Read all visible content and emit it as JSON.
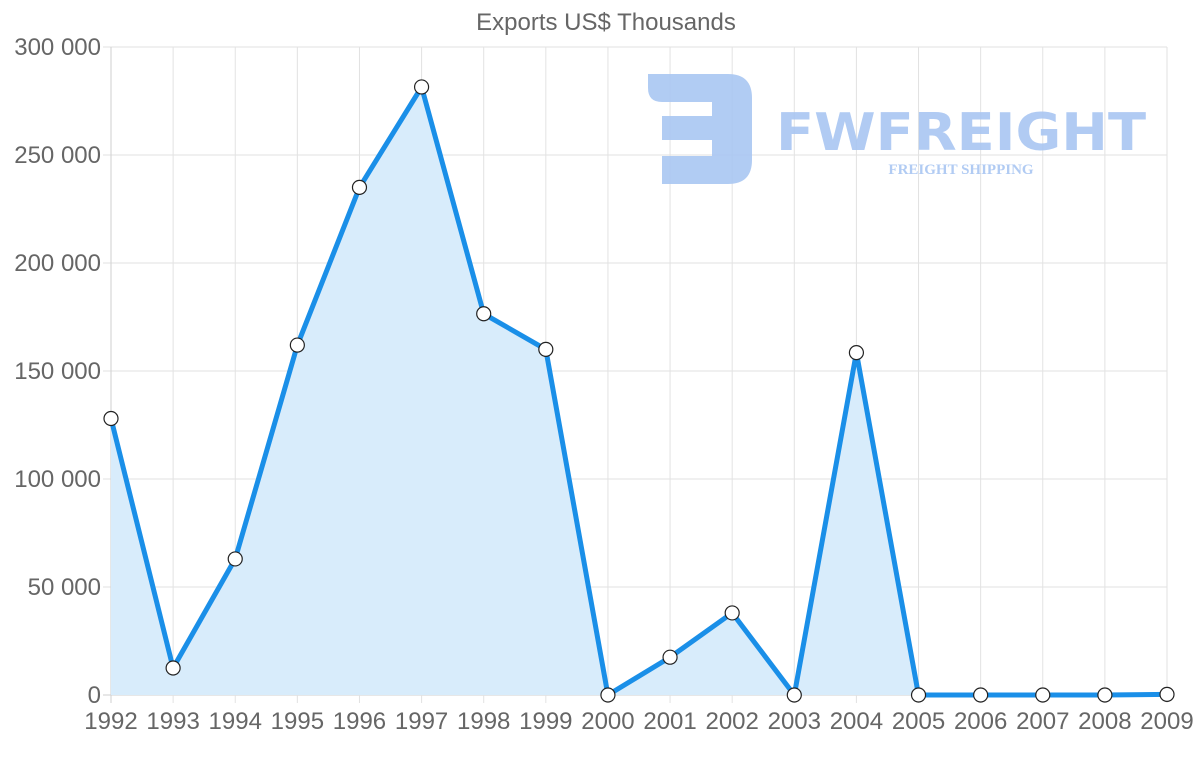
{
  "chart_data": {
    "type": "line",
    "title": "Exports US$ Thousands",
    "xlabel": "",
    "ylabel": "",
    "categories": [
      "1992",
      "1993",
      "1994",
      "1995",
      "1996",
      "1997",
      "1998",
      "1999",
      "2000",
      "2001",
      "2002",
      "2003",
      "2004",
      "2005",
      "2006",
      "2007",
      "2008",
      "2009"
    ],
    "series": [
      {
        "name": "Exports US$ Thousands",
        "values": [
          128000,
          12500,
          63000,
          162000,
          235000,
          281500,
          176500,
          160000,
          0,
          17500,
          38000,
          0,
          158500,
          0,
          0,
          0,
          0,
          300
        ],
        "color": "#1a8fe8",
        "fill": "#d8ecfb",
        "area": true
      }
    ],
    "ylim": [
      0,
      300000
    ],
    "yticks": [
      0,
      50000,
      100000,
      150000,
      200000,
      250000,
      300000
    ],
    "ytick_labels": [
      "0",
      "50 000",
      "100 000",
      "150 000",
      "200 000",
      "250 000",
      "300 000"
    ],
    "grid": true,
    "legend": "none"
  },
  "watermark": {
    "brand": "FWFREIGHT",
    "tagline": "FREIGHT SHIPPING",
    "color": "#a9c6f2"
  }
}
